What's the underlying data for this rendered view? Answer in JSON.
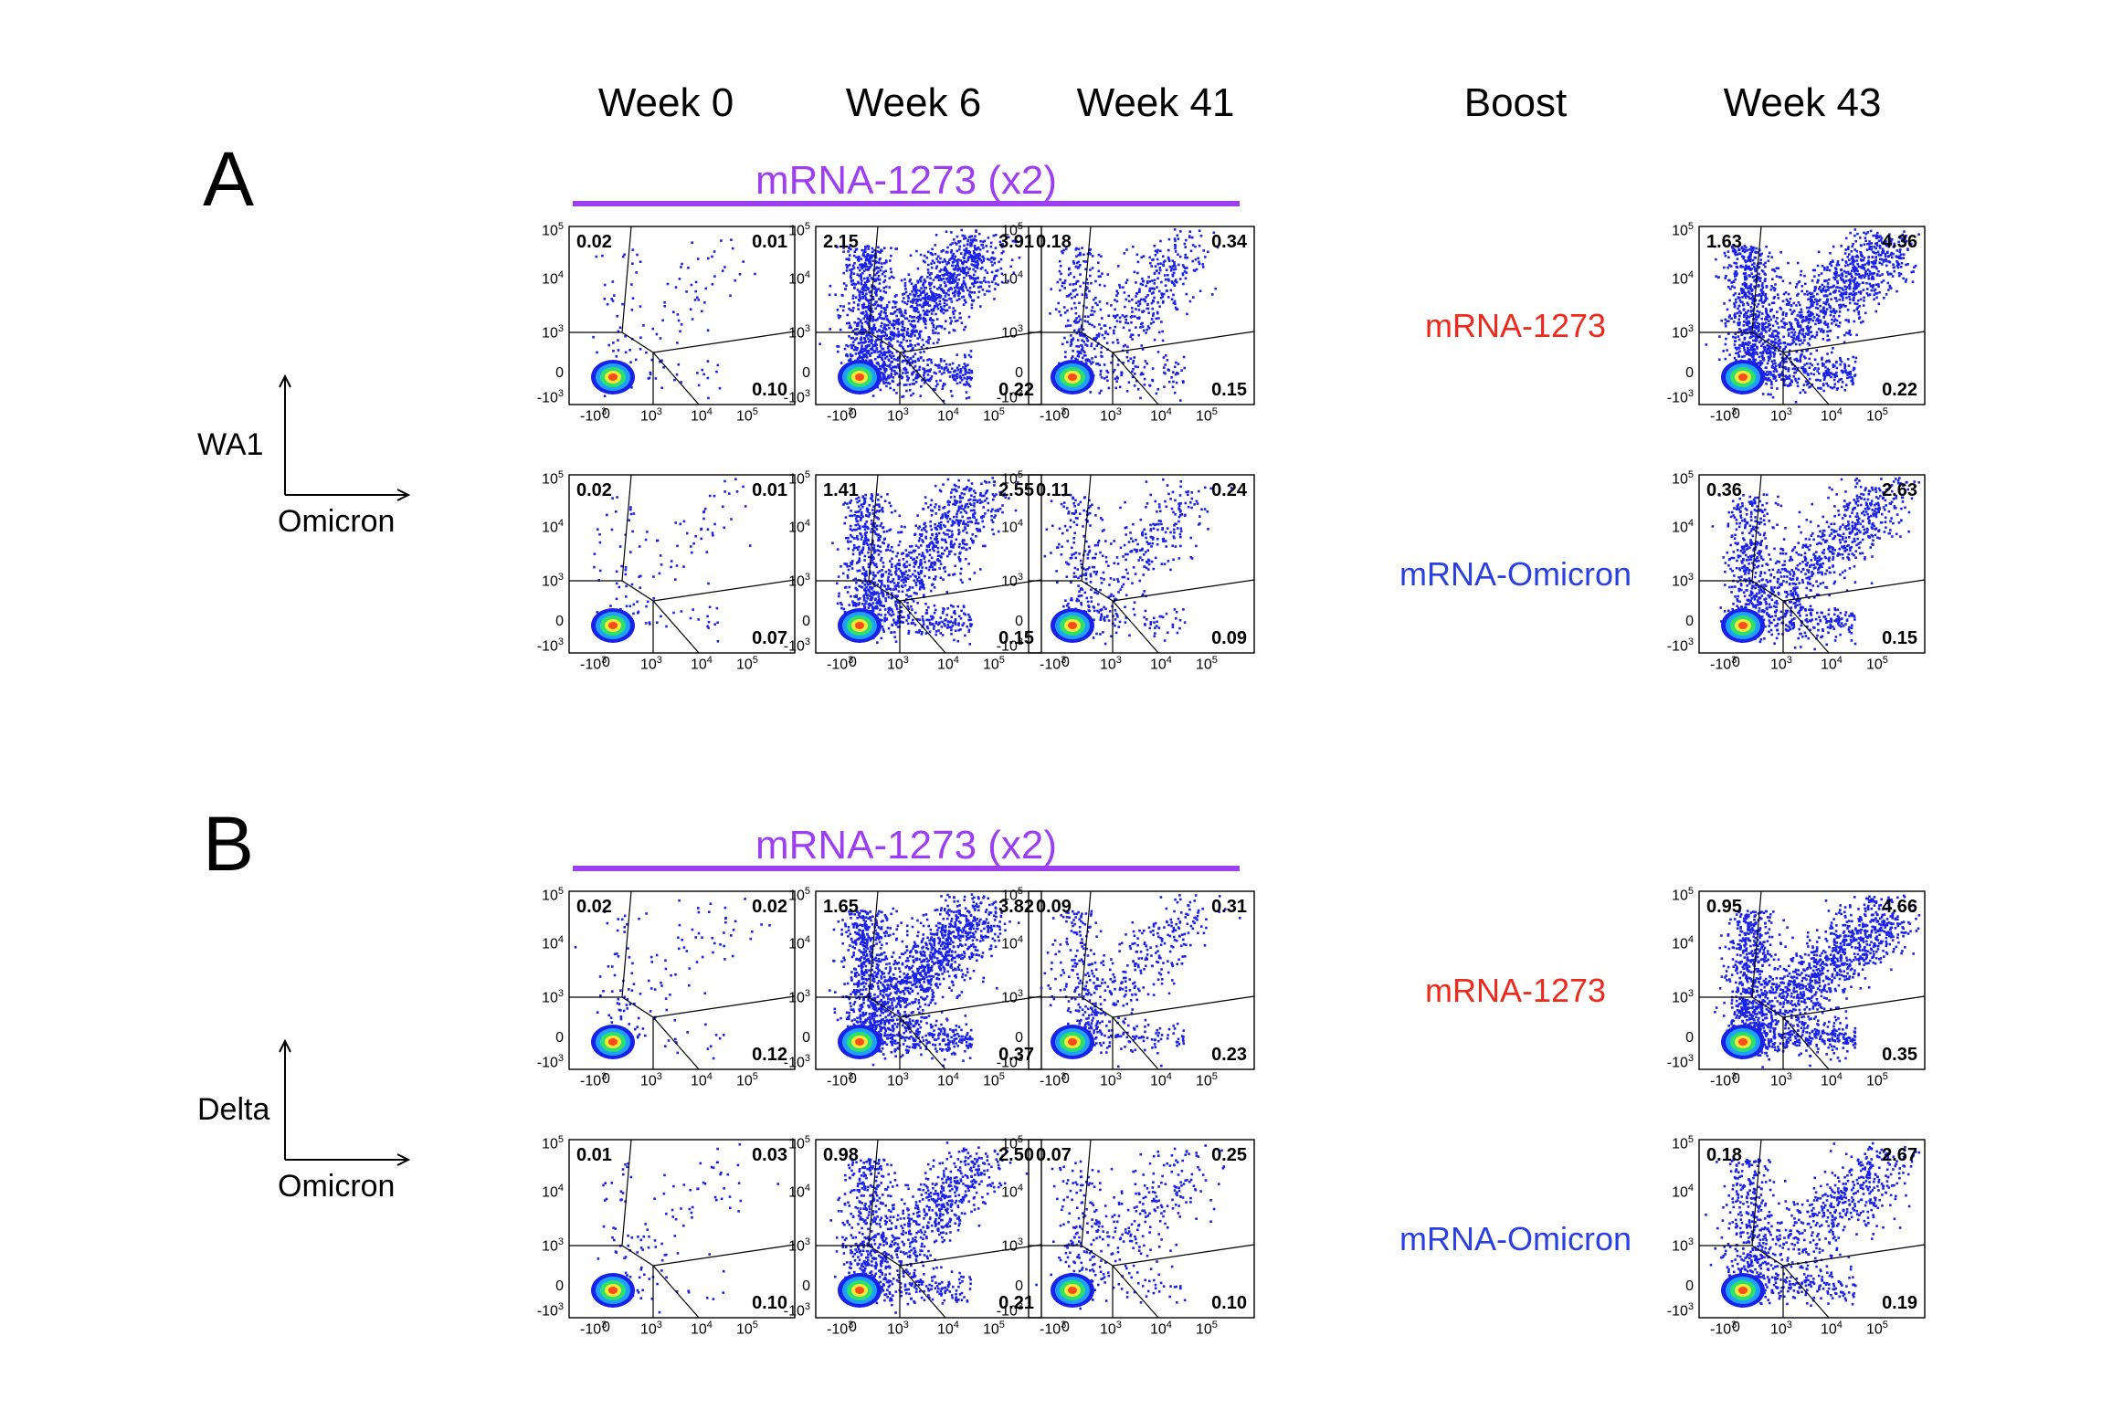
{
  "headers": {
    "week0": "Week 0",
    "week6": "Week 6",
    "week41": "Week 41",
    "boost": "Boost",
    "week43": "Week 43"
  },
  "panels": [
    {
      "letter": "A",
      "vaccine": "mRNA-1273 (x2)",
      "y_marker": "WA1",
      "x_marker": "Omicron",
      "rows": [
        {
          "boost": "mRNA-1273",
          "plots": [
            {
              "q1": "0.02",
              "q2": "0.01",
              "q4": "0.10",
              "density": 0.05
            },
            {
              "q1": "2.15",
              "q2": "3.91",
              "q4": "0.22",
              "density": 1.0
            },
            {
              "q1": "0.18",
              "q2": "0.34",
              "q4": "0.15",
              "density": 0.35
            },
            {
              "q1": "1.63",
              "q2": "4.36",
              "q4": "0.22",
              "density": 1.0
            }
          ]
        },
        {
          "boost": "mRNA-Omicron",
          "plots": [
            {
              "q1": "0.02",
              "q2": "0.01",
              "q4": "0.07",
              "density": 0.05
            },
            {
              "q1": "1.41",
              "q2": "2.55",
              "q4": "0.15",
              "density": 0.7
            },
            {
              "q1": "0.11",
              "q2": "0.24",
              "q4": "0.09",
              "density": 0.25
            },
            {
              "q1": "0.36",
              "q2": "2.63",
              "q4": "0.15",
              "density": 0.65
            }
          ]
        }
      ]
    },
    {
      "letter": "B",
      "vaccine": "mRNA-1273 (x2)",
      "y_marker": "Delta",
      "x_marker": "Omicron",
      "rows": [
        {
          "boost": "mRNA-1273",
          "plots": [
            {
              "q1": "0.02",
              "q2": "0.02",
              "q4": "0.12",
              "density": 0.06
            },
            {
              "q1": "1.65",
              "q2": "3.82",
              "q4": "0.37",
              "density": 1.0
            },
            {
              "q1": "0.09",
              "q2": "0.31",
              "q4": "0.23",
              "density": 0.3
            },
            {
              "q1": "0.95",
              "q2": "4.66",
              "q4": "0.35",
              "density": 1.0
            }
          ]
        },
        {
          "boost": "mRNA-Omicron",
          "plots": [
            {
              "q1": "0.01",
              "q2": "0.03",
              "q4": "0.10",
              "density": 0.05
            },
            {
              "q1": "0.98",
              "q2": "2.50",
              "q4": "0.21",
              "density": 0.6
            },
            {
              "q1": "0.07",
              "q2": "0.25",
              "q4": "0.10",
              "density": 0.2
            },
            {
              "q1": "0.18",
              "q2": "2.67",
              "q4": "0.19",
              "density": 0.55
            }
          ]
        }
      ]
    }
  ],
  "axis_ticks": {
    "y": [
      "10^5",
      "10^4",
      "10^3",
      "0",
      "-10^3"
    ],
    "x": [
      "-10^3",
      "0",
      "10^3",
      "10^4",
      "10^5"
    ]
  },
  "colors": {
    "vaccine": "#9b3ff0",
    "boost_1273": "#ee2a1c",
    "boost_omicron": "#2a3fe0",
    "dots": "#1a22e8"
  }
}
